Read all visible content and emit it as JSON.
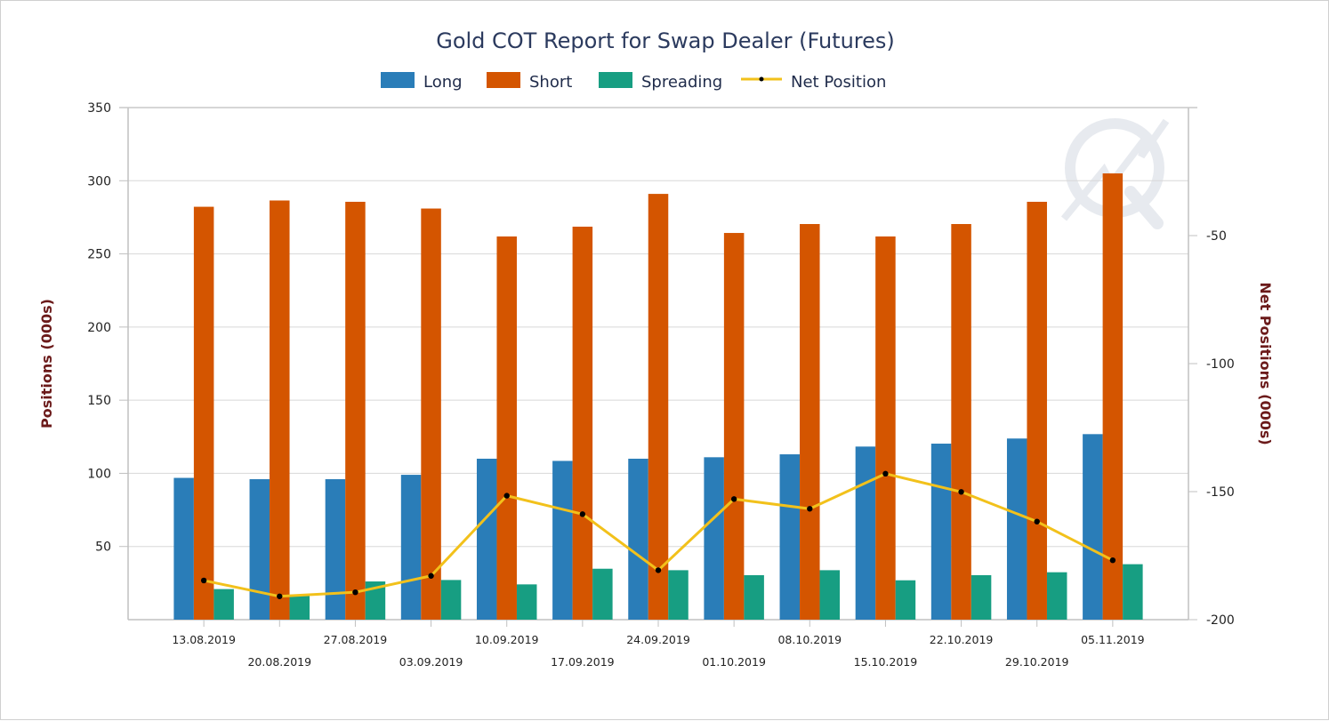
{
  "chart_data": {
    "type": "bar",
    "title": "Gold COT Report for Swap Dealer (Futures)",
    "categories": [
      "13.08.2019",
      "20.08.2019",
      "27.08.2019",
      "03.09.2019",
      "10.09.2019",
      "17.09.2019",
      "24.09.2019",
      "01.10.2019",
      "08.10.2019",
      "15.10.2019",
      "22.10.2019",
      "29.10.2019",
      "05.11.2019"
    ],
    "series": [
      {
        "name": "Long",
        "type": "bar",
        "axis": "left",
        "color": "#2a7db8",
        "values": [
          96.9,
          96.0,
          96.0,
          99.0,
          110.0,
          108.5,
          110.0,
          111.0,
          113.0,
          118.3,
          120.3,
          123.8,
          126.8
        ]
      },
      {
        "name": "Short",
        "type": "bar",
        "axis": "left",
        "color": "#d45500",
        "values": [
          282.2,
          286.5,
          285.6,
          281.0,
          261.9,
          268.6,
          291.0,
          264.3,
          270.4,
          261.9,
          270.4,
          285.6,
          305.0
        ]
      },
      {
        "name": "Spreading",
        "type": "bar",
        "axis": "left",
        "color": "#179e82",
        "values": [
          20.9,
          16.2,
          26.1,
          27.1,
          24.1,
          34.8,
          33.8,
          30.4,
          33.8,
          26.9,
          30.4,
          32.4,
          37.9
        ]
      },
      {
        "name": "Net Position",
        "type": "line",
        "axis": "right",
        "color": "#f2c11b",
        "marker_color": "#000000",
        "values": [
          -184.7,
          -190.9,
          -189.3,
          -182.9,
          -151.6,
          -158.8,
          -180.7,
          -152.9,
          -156.7,
          -143.0,
          -150.1,
          -161.7,
          -176.8
        ]
      }
    ],
    "xlabel": "",
    "ylabel": "Positions (000s)",
    "ylabel_right": "Net Positions (000s)",
    "ylim": [
      0,
      350
    ],
    "yticks": [
      50,
      100,
      150,
      200,
      250,
      300,
      350
    ],
    "ylim_right": [
      -200,
      0
    ],
    "yticks_right": [
      -50,
      -100,
      -150,
      -200
    ],
    "grid": true,
    "legend_position": "top-center"
  },
  "watermark": {
    "icon": "logo-watermark-icon"
  }
}
